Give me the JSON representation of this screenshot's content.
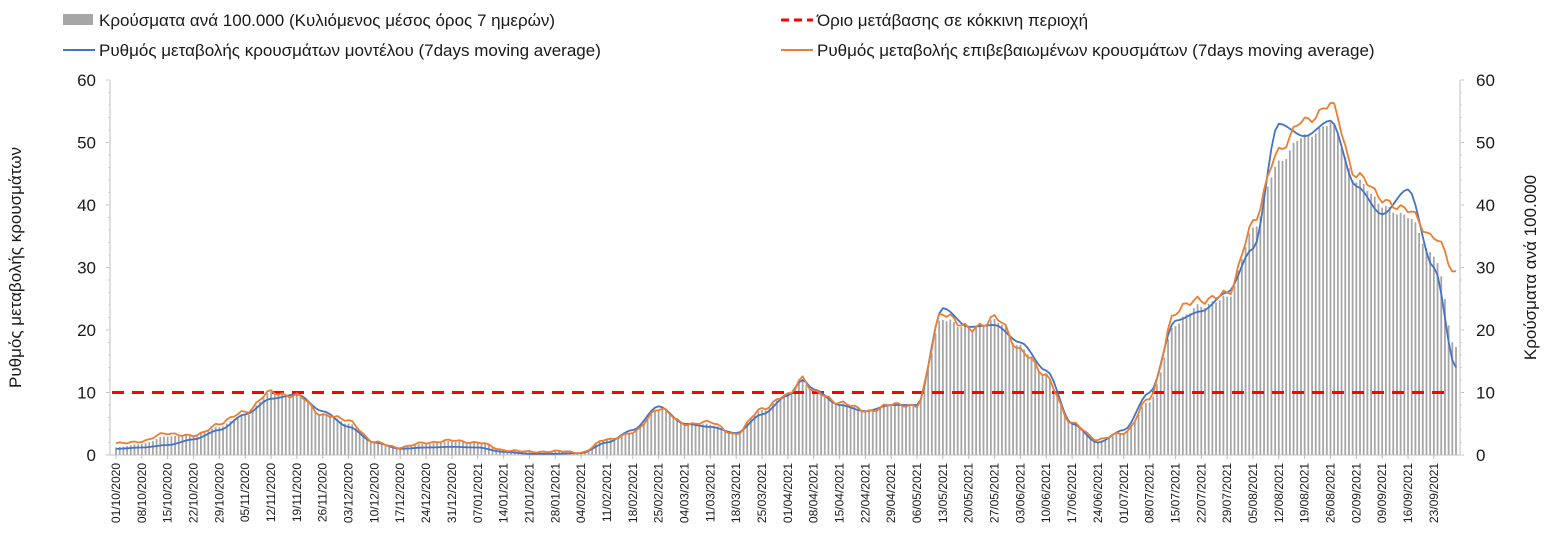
{
  "chart_data": {
    "type": "bar+line",
    "title": "",
    "xlabel": "",
    "ylabel": "Ρυθμός μεταβολής κρουσμάτων",
    "y2label": "Κρούσματα ανά 100.000",
    "ylim": [
      0,
      60
    ],
    "y2lim": [
      0,
      60
    ],
    "yticks": [
      "0",
      "10",
      "20",
      "30",
      "40",
      "50",
      "60"
    ],
    "y2ticks": [
      "0",
      "10",
      "20",
      "30",
      "40",
      "50",
      "60"
    ],
    "grid": false,
    "legend_position": "top",
    "x_start": "01/10/2020",
    "x_end": "29/09/2021",
    "xtick_labels": [
      "01/10/2020",
      "08/10/2020",
      "15/10/2020",
      "22/10/2020",
      "29/10/2020",
      "05/11/2020",
      "12/11/2020",
      "19/11/2020",
      "26/11/2020",
      "03/12/2020",
      "10/12/2020",
      "17/12/2020",
      "24/12/2020",
      "31/12/2020",
      "07/01/2021",
      "14/01/2021",
      "21/01/2021",
      "28/01/2021",
      "04/02/2021",
      "11/02/2021",
      "18/02/2021",
      "25/02/2021",
      "04/03/2021",
      "11/03/2021",
      "18/03/2021",
      "25/03/2021",
      "01/04/2021",
      "08/04/2021",
      "15/04/2021",
      "22/04/2021",
      "29/04/2021",
      "06/05/2021",
      "13/05/2021",
      "20/05/2021",
      "27/05/2021",
      "03/06/2021",
      "10/06/2021",
      "17/06/2021",
      "24/06/2021",
      "01/07/2021",
      "08/07/2021",
      "15/07/2021",
      "22/07/2021",
      "29/07/2021",
      "05/08/2021",
      "12/08/2021",
      "19/08/2021",
      "26/08/2021",
      "02/09/2021",
      "09/09/2021",
      "16/09/2021",
      "23/09/2021"
    ],
    "series": [
      {
        "name": "Κρούσματα ανά 100.000 (Κυλιόμενος μέσος όρος 7 ημερών)",
        "kind": "bar",
        "axis": "y2",
        "color": "#a6a6a6",
        "keypoints": [
          [
            "01/10/2020",
            1.2
          ],
          [
            "08/10/2020",
            1.8
          ],
          [
            "15/10/2020",
            3.0
          ],
          [
            "22/10/2020",
            3.2
          ],
          [
            "29/10/2020",
            4.5
          ],
          [
            "05/11/2020",
            6.5
          ],
          [
            "12/11/2020",
            9.8
          ],
          [
            "19/11/2020",
            9.6
          ],
          [
            "26/11/2020",
            6.5
          ],
          [
            "03/12/2020",
            5.0
          ],
          [
            "10/12/2020",
            2.0
          ],
          [
            "17/12/2020",
            1.3
          ],
          [
            "24/12/2020",
            1.8
          ],
          [
            "31/12/2020",
            2.2
          ],
          [
            "07/01/2021",
            2.0
          ],
          [
            "14/01/2021",
            0.8
          ],
          [
            "21/01/2021",
            0.5
          ],
          [
            "28/01/2021",
            0.6
          ],
          [
            "04/02/2021",
            0.4
          ],
          [
            "11/02/2021",
            2.5
          ],
          [
            "18/02/2021",
            3.5
          ],
          [
            "25/02/2021",
            7.5
          ],
          [
            "04/03/2021",
            5.0
          ],
          [
            "11/03/2021",
            4.8
          ],
          [
            "18/03/2021",
            3.5
          ],
          [
            "25/03/2021",
            7.2
          ],
          [
            "01/04/2021",
            9.5
          ],
          [
            "05/04/2021",
            12.0
          ],
          [
            "08/04/2021",
            10.0
          ],
          [
            "15/04/2021",
            8.2
          ],
          [
            "22/04/2021",
            7.0
          ],
          [
            "29/04/2021",
            8.0
          ],
          [
            "06/05/2021",
            8.0
          ],
          [
            "13/05/2021",
            22.0
          ],
          [
            "20/05/2021",
            20.0
          ],
          [
            "27/05/2021",
            21.5
          ],
          [
            "03/06/2021",
            17.5
          ],
          [
            "10/06/2021",
            12.5
          ],
          [
            "17/06/2021",
            5.0
          ],
          [
            "24/06/2021",
            2.2
          ],
          [
            "01/07/2021",
            3.5
          ],
          [
            "08/07/2021",
            8.5
          ],
          [
            "15/07/2021",
            21.0
          ],
          [
            "22/07/2021",
            24.0
          ],
          [
            "29/07/2021",
            25.0
          ],
          [
            "05/08/2021",
            36.0
          ],
          [
            "12/08/2021",
            47.0
          ],
          [
            "19/08/2021",
            51.0
          ],
          [
            "26/08/2021",
            53.0
          ],
          [
            "02/09/2021",
            44.0
          ],
          [
            "09/09/2021",
            40.0
          ],
          [
            "16/09/2021",
            38.0
          ],
          [
            "23/09/2021",
            32.0
          ],
          [
            "29/09/2021",
            17.0
          ]
        ]
      },
      {
        "name": "Όριο μετάβασης σε κόκκινη περιοχή",
        "kind": "hline",
        "axis": "y",
        "color": "#ff0000",
        "value": 10
      },
      {
        "name": "Ρυθμός μεταβολής κρουσμάτων μοντέλου (7days moving average)",
        "kind": "line",
        "axis": "y",
        "color": "#4472c4",
        "keypoints": [
          [
            "01/10/2020",
            1.0
          ],
          [
            "08/10/2020",
            1.2
          ],
          [
            "15/10/2020",
            1.6
          ],
          [
            "22/10/2020",
            2.5
          ],
          [
            "29/10/2020",
            4.0
          ],
          [
            "05/11/2020",
            6.5
          ],
          [
            "12/11/2020",
            9.0
          ],
          [
            "19/11/2020",
            9.7
          ],
          [
            "26/11/2020",
            7.0
          ],
          [
            "03/12/2020",
            4.5
          ],
          [
            "10/12/2020",
            2.0
          ],
          [
            "17/12/2020",
            1.0
          ],
          [
            "24/12/2020",
            1.2
          ],
          [
            "31/12/2020",
            1.3
          ],
          [
            "07/01/2021",
            1.2
          ],
          [
            "14/01/2021",
            0.5
          ],
          [
            "21/01/2021",
            0.2
          ],
          [
            "28/01/2021",
            0.2
          ],
          [
            "04/02/2021",
            0.3
          ],
          [
            "11/02/2021",
            2.0
          ],
          [
            "18/02/2021",
            4.0
          ],
          [
            "25/02/2021",
            7.8
          ],
          [
            "04/03/2021",
            5.0
          ],
          [
            "11/03/2021",
            4.5
          ],
          [
            "18/03/2021",
            3.5
          ],
          [
            "25/03/2021",
            6.5
          ],
          [
            "01/04/2021",
            9.5
          ],
          [
            "05/04/2021",
            12.0
          ],
          [
            "08/04/2021",
            10.5
          ],
          [
            "15/04/2021",
            8.0
          ],
          [
            "22/04/2021",
            7.0
          ],
          [
            "29/04/2021",
            8.0
          ],
          [
            "06/05/2021",
            8.0
          ],
          [
            "13/05/2021",
            23.5
          ],
          [
            "20/05/2021",
            20.5
          ],
          [
            "27/05/2021",
            20.8
          ],
          [
            "03/06/2021",
            18.0
          ],
          [
            "10/06/2021",
            13.5
          ],
          [
            "17/06/2021",
            5.0
          ],
          [
            "24/06/2021",
            2.0
          ],
          [
            "01/07/2021",
            4.0
          ],
          [
            "08/07/2021",
            10.0
          ],
          [
            "15/07/2021",
            21.5
          ],
          [
            "22/07/2021",
            23.0
          ],
          [
            "29/07/2021",
            26.0
          ],
          [
            "05/08/2021",
            33.0
          ],
          [
            "12/08/2021",
            53.0
          ],
          [
            "19/08/2021",
            51.0
          ],
          [
            "26/08/2021",
            53.5
          ],
          [
            "02/09/2021",
            43.0
          ],
          [
            "09/09/2021",
            38.5
          ],
          [
            "16/09/2021",
            42.5
          ],
          [
            "23/09/2021",
            30.0
          ],
          [
            "29/09/2021",
            14.0
          ]
        ]
      },
      {
        "name": "Ρυθμός μεταβολής επιβεβαιωμένων κρουσμάτων (7days moving average)",
        "kind": "line",
        "axis": "y",
        "color": "#ed7d31",
        "keypoints": [
          [
            "01/10/2020",
            1.8
          ],
          [
            "08/10/2020",
            2.2
          ],
          [
            "15/10/2020",
            3.5
          ],
          [
            "22/10/2020",
            3.0
          ],
          [
            "29/10/2020",
            5.0
          ],
          [
            "05/11/2020",
            7.0
          ],
          [
            "12/11/2020",
            10.0
          ],
          [
            "19/11/2020",
            9.5
          ],
          [
            "26/11/2020",
            6.5
          ],
          [
            "03/12/2020",
            5.5
          ],
          [
            "10/12/2020",
            2.0
          ],
          [
            "17/12/2020",
            1.2
          ],
          [
            "24/12/2020",
            2.0
          ],
          [
            "31/12/2020",
            2.3
          ],
          [
            "07/01/2021",
            2.0
          ],
          [
            "14/01/2021",
            0.8
          ],
          [
            "21/01/2021",
            0.5
          ],
          [
            "28/01/2021",
            0.6
          ],
          [
            "04/02/2021",
            0.4
          ],
          [
            "11/02/2021",
            2.5
          ],
          [
            "18/02/2021",
            3.5
          ],
          [
            "25/02/2021",
            7.5
          ],
          [
            "04/03/2021",
            5.0
          ],
          [
            "11/03/2021",
            5.2
          ],
          [
            "18/03/2021",
            3.3
          ],
          [
            "25/03/2021",
            7.5
          ],
          [
            "01/04/2021",
            9.5
          ],
          [
            "05/04/2021",
            12.5
          ],
          [
            "08/04/2021",
            10.0
          ],
          [
            "15/04/2021",
            8.5
          ],
          [
            "22/04/2021",
            7.0
          ],
          [
            "29/04/2021",
            8.0
          ],
          [
            "06/05/2021",
            8.0
          ],
          [
            "13/05/2021",
            23.0
          ],
          [
            "20/05/2021",
            20.0
          ],
          [
            "27/05/2021",
            22.0
          ],
          [
            "03/06/2021",
            17.0
          ],
          [
            "10/06/2021",
            12.5
          ],
          [
            "17/06/2021",
            5.0
          ],
          [
            "24/06/2021",
            2.5
          ],
          [
            "01/07/2021",
            3.5
          ],
          [
            "08/07/2021",
            9.0
          ],
          [
            "15/07/2021",
            23.0
          ],
          [
            "22/07/2021",
            25.0
          ],
          [
            "29/07/2021",
            25.5
          ],
          [
            "05/08/2021",
            37.0
          ],
          [
            "12/08/2021",
            49.0
          ],
          [
            "19/08/2021",
            53.5
          ],
          [
            "26/08/2021",
            56.0
          ],
          [
            "02/09/2021",
            45.0
          ],
          [
            "09/09/2021",
            41.0
          ],
          [
            "16/09/2021",
            39.0
          ],
          [
            "23/09/2021",
            35.0
          ],
          [
            "29/09/2021",
            29.0
          ]
        ]
      }
    ]
  }
}
